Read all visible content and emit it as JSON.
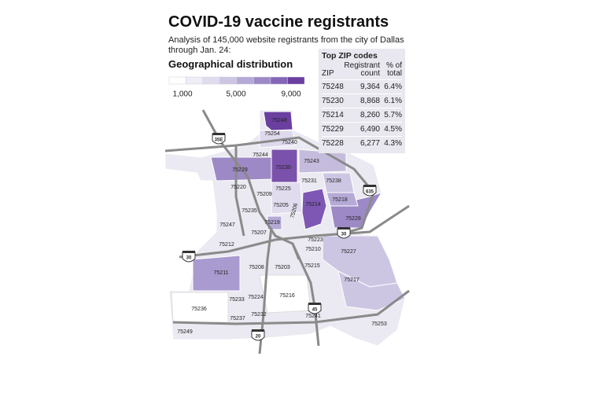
{
  "header": {
    "title": "COVID-19 vaccine registrants",
    "subtitle": "Analysis of 145,000 website registrants from the city of Dallas through Jan. 24:",
    "section": "Geographical distribution"
  },
  "legend": {
    "colors": [
      "#ffffff",
      "#efedf5",
      "#e0dcee",
      "#cdc6e3",
      "#b5aad6",
      "#9c89c6",
      "#8366b8",
      "#6a3f9f"
    ],
    "labels": [
      "1,000",
      "5,000",
      "9,000"
    ]
  },
  "table": {
    "title": "Top ZIP codes",
    "columns": [
      "ZIP",
      "Registrant count",
      "% of total"
    ],
    "rows": [
      [
        "75248",
        "9,364",
        "6.4%"
      ],
      [
        "75230",
        "8,868",
        "6.1%"
      ],
      [
        "75214",
        "8,260",
        "5.7%"
      ],
      [
        "75229",
        "6,490",
        "4.5%"
      ],
      [
        "75228",
        "6,277",
        "4.3%"
      ]
    ]
  },
  "map": {
    "zip_labels": [
      "75248",
      "75254",
      "75240",
      "75244",
      "75243",
      "75229",
      "75230",
      "75231",
      "75238",
      "75220",
      "75225",
      "75209",
      "75218",
      "75235",
      "75205",
      "75206",
      "75214",
      "75228",
      "75247",
      "75219",
      "75207",
      "75223",
      "75212",
      "75210",
      "75227",
      "75208",
      "75203",
      "75215",
      "75211",
      "75217",
      "75224",
      "75216",
      "75233",
      "75236",
      "75232",
      "75241",
      "75237",
      "75253",
      "75249"
    ],
    "highways": [
      "35E",
      "635",
      "30",
      "30",
      "45",
      "20"
    ]
  }
}
